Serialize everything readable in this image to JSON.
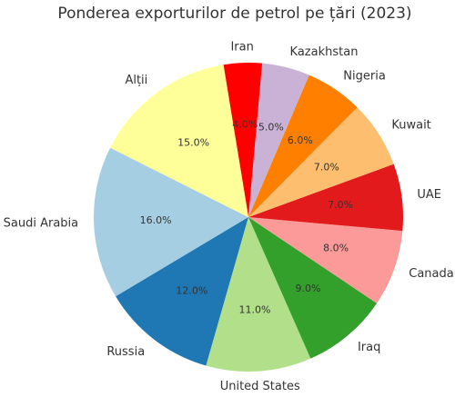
{
  "chart_data": {
    "type": "pie",
    "title": "Ponderea exporturilor de petrol pe țări (2023)",
    "categories": [
      "Saudi Arabia",
      "Russia",
      "United States",
      "Iraq",
      "Canada",
      "UAE",
      "Kuwait",
      "Nigeria",
      "Kazakhstan",
      "Iran",
      "Alții"
    ],
    "values": [
      16.0,
      12.0,
      11.0,
      9.0,
      8.0,
      7.0,
      7.0,
      6.0,
      5.0,
      4.0,
      15.0
    ],
    "value_labels": [
      "16.0%",
      "12.0%",
      "11.0%",
      "9.0%",
      "8.0%",
      "7.0%",
      "7.0%",
      "6.0%",
      "5.0%",
      "4.0%",
      "15.0%"
    ],
    "colors": [
      "#a6cee3",
      "#1f78b4",
      "#b2df8a",
      "#33a02c",
      "#fb9a99",
      "#e31a1c",
      "#fdbf6f",
      "#ff7f00",
      "#cab2d6",
      "#ff0000",
      "#ffff99"
    ],
    "label_colors": [
      "#333333",
      "#333333",
      "#333333",
      "#333333",
      "#333333",
      "#333333",
      "#333333",
      "#333333",
      "#333333",
      "#333333",
      "#777777"
    ],
    "start_angle_deg": 153.3,
    "direction": "counterclockwise"
  }
}
